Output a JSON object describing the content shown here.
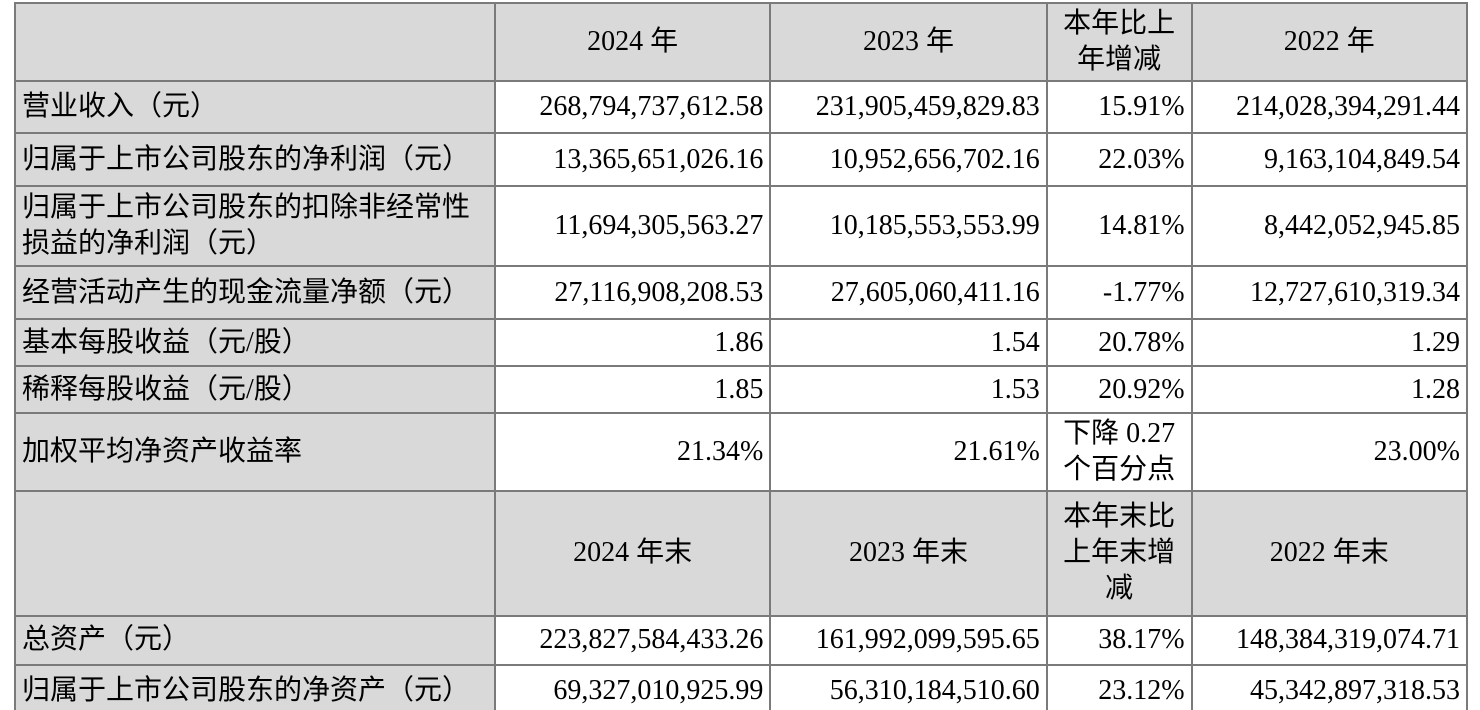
{
  "colors": {
    "header_background": "#d9d9d9",
    "label_background": "#d9d9d9",
    "cell_background": "#ffffff",
    "border": "#7a7a7a",
    "text": "#000000"
  },
  "table": {
    "period_header": {
      "blank": "",
      "y2024": "2024 年",
      "y2023": "2023 年",
      "change": "本年比上\n年增减",
      "y2022": "2022 年"
    },
    "period_rows": [
      {
        "label": "营业收入（元）",
        "v2024": "268,794,737,612.58",
        "v2023": "231,905,459,829.83",
        "change": "15.91%",
        "v2022": "214,028,394,291.44"
      },
      {
        "label": "归属于上市公司股东的净利润（元）",
        "v2024": "13,365,651,026.16",
        "v2023": "10,952,656,702.16",
        "change": "22.03%",
        "v2022": "9,163,104,849.54"
      },
      {
        "label": "归属于上市公司股东的扣除非经常性\n损益的净利润（元）",
        "v2024": "11,694,305,563.27",
        "v2023": "10,185,553,553.99",
        "change": "14.81%",
        "v2022": "8,442,052,945.85"
      },
      {
        "label": "经营活动产生的现金流量净额（元）",
        "v2024": "27,116,908,208.53",
        "v2023": "27,605,060,411.16",
        "change": "-1.77%",
        "v2022": "12,727,610,319.34"
      },
      {
        "label": "基本每股收益（元/股）",
        "v2024": "1.86",
        "v2023": "1.54",
        "change": "20.78%",
        "v2022": "1.29"
      },
      {
        "label": "稀释每股收益（元/股）",
        "v2024": "1.85",
        "v2023": "1.53",
        "change": "20.92%",
        "v2022": "1.28"
      },
      {
        "label": "加权平均净资产收益率",
        "v2024": "21.34%",
        "v2023": "21.61%",
        "change": "下降 0.27\n个百分点",
        "v2022": "23.00%"
      }
    ],
    "eop_header": {
      "blank": "",
      "y2024": "2024 年末",
      "y2023": "2023 年末",
      "change": "本年末比\n上年末增\n减",
      "y2022": "2022 年末"
    },
    "eop_rows": [
      {
        "label": "总资产（元）",
        "v2024": "223,827,584,433.26",
        "v2023": "161,992,099,595.65",
        "change": "38.17%",
        "v2022": "148,384,319,074.71"
      },
      {
        "label": "归属于上市公司股东的净资产（元）",
        "v2024": "69,327,010,925.99",
        "v2023": "56,310,184,510.60",
        "change": "23.12%",
        "v2022": "45,342,897,318.53"
      }
    ]
  }
}
